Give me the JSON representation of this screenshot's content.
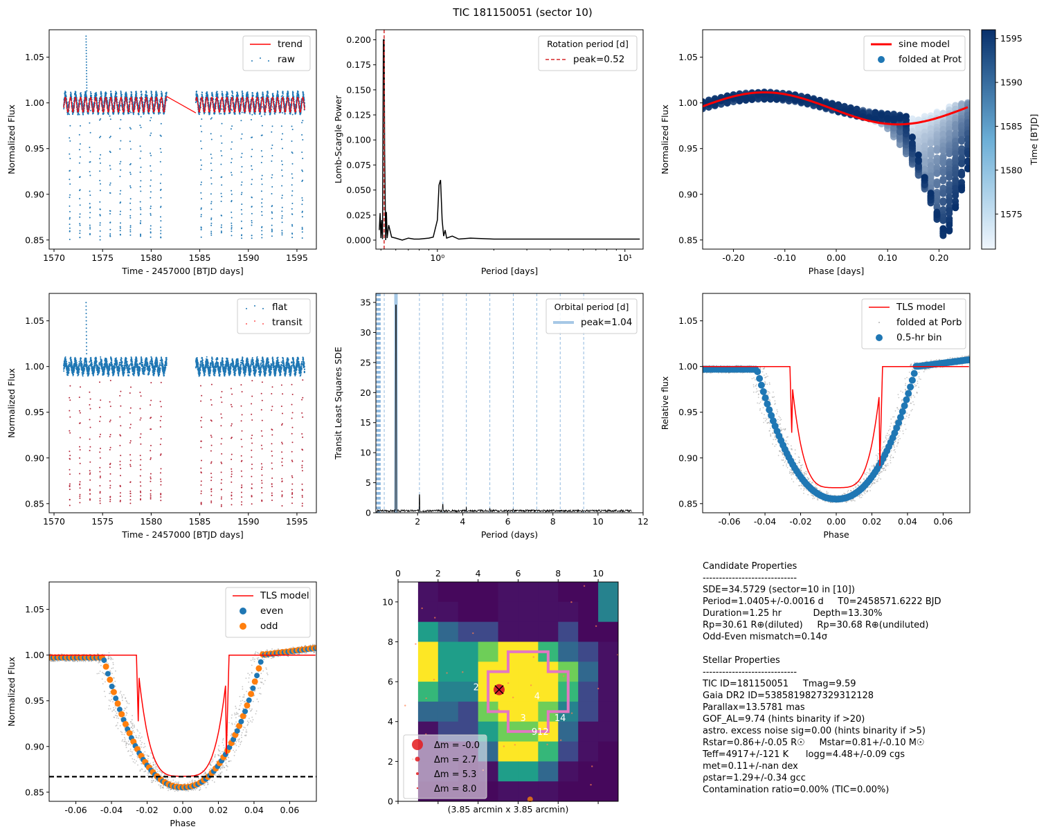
{
  "figure_title": "TIC 181150051 (sector 10)",
  "colors": {
    "blue": "#1f77b4",
    "red": "#ff0000",
    "orange": "#ff7f0e",
    "navy": "#08306b"
  },
  "chart_data": [
    {
      "id": "raw-lc",
      "type": "scatter",
      "xlabel": "Time - 2457000 [BTJD days]",
      "ylabel": "Normalized Flux",
      "xlim": [
        1569.5,
        1597
      ],
      "ylim": [
        0.84,
        1.08
      ],
      "xticks": [
        1570,
        1575,
        1580,
        1585,
        1590,
        1595
      ],
      "yticks": [
        0.85,
        0.9,
        0.95,
        1.0,
        1.05
      ],
      "legend": {
        "position": "top-right",
        "entries": [
          "trend",
          "raw"
        ]
      },
      "series": [
        {
          "name": "trend",
          "kind": "line",
          "segments": [
            [
              1571.0,
              1581.6
            ],
            [
              1584.6,
              1595.8
            ]
          ],
          "gap_line": [
            [
              1581.6,
              1.007
            ],
            [
              1584.6,
              0.989
            ]
          ]
        },
        {
          "name": "raw",
          "kind": "points",
          "segments": [
            [
              1571.0,
              1581.6
            ],
            [
              1584.6,
              1595.8
            ]
          ],
          "period": 1.0405,
          "t0": 1571.6222,
          "depth_min": 0.855,
          "baseline": 1.0,
          "flare": {
            "x": 1573.3,
            "y": 1.073
          }
        }
      ]
    },
    {
      "id": "lomb-scargle",
      "type": "line",
      "xlabel": "Period [days]",
      "ylabel": "Lomb-Scargle Power",
      "xscale": "log",
      "xlim": [
        0.47,
        12.5
      ],
      "ylim": [
        -0.009,
        0.21
      ],
      "xticks": [
        1,
        10
      ],
      "xticklabels": [
        "10⁰",
        "10¹"
      ],
      "yticks": [
        0.0,
        0.025,
        0.05,
        0.075,
        0.1,
        0.125,
        0.15,
        0.175,
        0.2
      ],
      "legend": {
        "position": "top-right",
        "title": "Rotation period [d]",
        "entries": [
          "peak=0.52"
        ]
      },
      "peak_period": 0.52,
      "points": [
        [
          0.49,
          0.01
        ],
        [
          0.495,
          0.027
        ],
        [
          0.5,
          0.002
        ],
        [
          0.505,
          0.02
        ],
        [
          0.51,
          0.001
        ],
        [
          0.515,
          0.2
        ],
        [
          0.52,
          0.2
        ],
        [
          0.523,
          0.09
        ],
        [
          0.53,
          0.0
        ],
        [
          0.535,
          0.028
        ],
        [
          0.54,
          0.002
        ],
        [
          0.55,
          0.015
        ],
        [
          0.57,
          0.003
        ],
        [
          0.6,
          0.002
        ],
        [
          0.65,
          0.0
        ],
        [
          0.7,
          0.002
        ],
        [
          0.75,
          0.001
        ],
        [
          0.8,
          0.001
        ],
        [
          0.9,
          0.002
        ],
        [
          0.95,
          0.003
        ],
        [
          1.0,
          0.02
        ],
        [
          1.02,
          0.055
        ],
        [
          1.04,
          0.06
        ],
        [
          1.06,
          0.02
        ],
        [
          1.08,
          0.004
        ],
        [
          1.1,
          0.01
        ],
        [
          1.12,
          0.002
        ],
        [
          1.2,
          0.004
        ],
        [
          1.3,
          0.001
        ],
        [
          1.5,
          0.002
        ],
        [
          2.0,
          0.001
        ],
        [
          3.0,
          0.001
        ],
        [
          5.0,
          0.001
        ],
        [
          8.0,
          0.001
        ],
        [
          12.0,
          0.001
        ]
      ]
    },
    {
      "id": "folded-prot",
      "type": "scatter",
      "xlabel": "Phase [days]",
      "ylabel": "Normalized Flux",
      "xlim": [
        -0.26,
        0.26
      ],
      "ylim": [
        0.84,
        1.08
      ],
      "xticks": [
        -0.2,
        -0.1,
        0.0,
        0.1,
        0.2
      ],
      "yticks": [
        0.85,
        0.9,
        0.95,
        1.0,
        1.05
      ],
      "legend": {
        "position": "top-right",
        "entries": [
          "sine model",
          "folded at Prot"
        ]
      },
      "sine_model": {
        "amplitude": 0.0175,
        "offset": 0.994,
        "peak_phase": -0.14,
        "period": 0.52
      },
      "colorbar": {
        "label": "Time [BTJD]",
        "range": [
          1571,
          1596
        ],
        "ticks": [
          1575,
          1580,
          1585,
          1590,
          1595
        ]
      }
    },
    {
      "id": "flat-lc",
      "type": "scatter",
      "xlabel": "Time - 2457000 [BTJD days]",
      "ylabel": "Normalized Flux",
      "xlim": [
        1569.5,
        1597
      ],
      "ylim": [
        0.84,
        1.08
      ],
      "xticks": [
        1570,
        1575,
        1580,
        1585,
        1590,
        1595
      ],
      "yticks": [
        0.85,
        0.9,
        0.95,
        1.0,
        1.05
      ],
      "legend": {
        "position": "top-right",
        "entries": [
          "flat",
          "transit"
        ]
      },
      "series": [
        {
          "name": "flat",
          "segments": [
            [
              1571.0,
              1581.6
            ],
            [
              1584.6,
              1595.8
            ]
          ],
          "baseline": 1.0
        },
        {
          "name": "transit",
          "period": 1.0405,
          "t0": 1571.6222,
          "depth_min": 0.852
        }
      ]
    },
    {
      "id": "tls-periodogram",
      "type": "line",
      "xlabel": "Period (days)",
      "ylabel": "Transit Least Squares SDE",
      "xlim": [
        0.15,
        12
      ],
      "ylim": [
        0,
        36.5
      ],
      "xticks": [
        2,
        4,
        6,
        8,
        10,
        12
      ],
      "yticks": [
        0,
        5,
        10,
        15,
        20,
        25,
        30,
        35
      ],
      "legend": {
        "position": "top-right",
        "title": "Orbital period [d]",
        "entries": [
          "peak=1.04"
        ]
      },
      "peak_period": 1.0405,
      "peak_sde": 34.57,
      "harmonics": [
        2.081,
        3.1215,
        4.162,
        5.2025,
        6.243,
        7.2835,
        8.324,
        9.3645,
        0.52,
        0.347,
        0.26,
        0.208,
        0.173
      ],
      "secondary_peaks": [
        [
          2.08,
          3.0
        ],
        [
          3.12,
          1.4
        ],
        [
          4.16,
          1.0
        ],
        [
          5.2,
          0.7
        ],
        [
          6.24,
          0.6
        ],
        [
          7.28,
          0.5
        ],
        [
          8.32,
          0.4
        ],
        [
          9.36,
          0.3
        ],
        [
          10.4,
          0.3
        ]
      ]
    },
    {
      "id": "tls-fold",
      "type": "scatter",
      "xlabel": "Phase",
      "ylabel": "Relative flux",
      "xlim": [
        -0.075,
        0.075
      ],
      "ylim": [
        0.84,
        1.08
      ],
      "xticks": [
        -0.06,
        -0.04,
        -0.02,
        0.0,
        0.02,
        0.04,
        0.06
      ],
      "yticks": [
        0.85,
        0.9,
        0.95,
        1.0,
        1.05
      ],
      "legend": {
        "position": "top-right",
        "entries": [
          "TLS model",
          "folded at Porb",
          "0.5-hr bin"
        ]
      },
      "model": {
        "t_half": 0.026,
        "depth": 0.8675
      }
    },
    {
      "id": "odd-even",
      "type": "scatter",
      "xlabel": "Phase",
      "ylabel": "Normalized Flux",
      "xlim": [
        -0.075,
        0.075
      ],
      "ylim": [
        0.84,
        1.08
      ],
      "xticks": [
        -0.06,
        -0.04,
        -0.02,
        0.0,
        0.02,
        0.04,
        0.06
      ],
      "yticks": [
        0.85,
        0.9,
        0.95,
        1.0,
        1.05
      ],
      "legend": {
        "position": "top-right",
        "entries": [
          "TLS model",
          "even",
          "odd"
        ]
      },
      "depth_line": 0.867
    },
    {
      "id": "tpf-image",
      "type": "heatmap",
      "xlabel": "(3.85 arcmin x 3.85 arcmin)",
      "xlim": [
        0,
        11
      ],
      "ylim": [
        0,
        11
      ],
      "xticks": [
        0,
        2,
        4,
        6,
        8,
        10
      ],
      "yticks": [
        0,
        2,
        4,
        6,
        8,
        10
      ],
      "grid": [
        [
          2,
          1,
          1,
          1,
          2,
          2,
          2,
          1,
          1,
          5
        ],
        [
          2,
          2,
          1,
          1,
          2,
          2,
          2,
          2,
          1,
          5
        ],
        [
          6,
          4,
          3,
          3,
          2,
          2,
          2,
          3,
          1,
          1
        ],
        [
          9,
          6,
          6,
          8,
          9,
          9,
          7,
          4,
          3,
          2
        ],
        [
          9,
          6,
          6,
          9,
          9,
          9,
          9,
          8,
          4,
          2
        ],
        [
          7,
          5,
          5,
          9,
          9,
          9,
          9,
          7,
          3,
          2
        ],
        [
          4,
          4,
          3,
          8,
          9,
          9,
          8,
          5,
          3,
          2
        ],
        [
          2,
          3,
          3,
          6,
          8,
          8,
          9,
          4,
          2,
          2
        ],
        [
          2,
          2,
          2,
          4,
          9,
          9,
          7,
          3,
          2,
          1
        ],
        [
          2,
          2,
          1,
          2,
          6,
          6,
          4,
          2,
          1,
          1
        ],
        [
          1,
          1,
          1,
          1,
          2,
          2,
          2,
          1,
          1,
          1
        ]
      ],
      "star_labels": [
        {
          "text": "2",
          "x": 3.9,
          "y": 5.75
        },
        {
          "text": "4",
          "x": 6.95,
          "y": 5.3
        },
        {
          "text": "3",
          "x": 6.25,
          "y": 4.2
        },
        {
          "text": "14",
          "x": 8.1,
          "y": 4.2
        },
        {
          "text": "912",
          "x": 7.1,
          "y": 3.5
        }
      ],
      "legend": {
        "position": "bottom-left",
        "entries": [
          "Δm = -0.0",
          "Δm = 2.7",
          "Δm = 5.3",
          "Δm = 8.0"
        ]
      }
    }
  ],
  "candidate_properties": [
    "Candidate Properties",
    "-----------------------------",
    "SDE=34.5729 (sector=10 in [10])",
    "Period=1.0405+/-0.0016 d     T0=2458571.6222 BJD",
    "Duration=1.25 hr           Depth=13.30%",
    "Rp=30.61 R⊕(diluted)     Rp=30.68 R⊕(undiluted)",
    "Odd-Even mismatch=0.14σ",
    ""
  ],
  "stellar_properties": [
    "Stellar Properties",
    "-----------------------------",
    "TIC ID=181150051     Tmag=9.59",
    "Gaia DR2 ID=5385819827329312128",
    "Parallax=13.5781 mas",
    "GOF_AL=9.74 (hints binarity if >20)",
    "astro. excess noise sig=0.00 (hints binarity if >5)",
    "Rstar=0.86+/-0.05 R☉     Mstar=0.81+/-0.10 M☉",
    "Teff=4917+/-121 K      logg=4.48+/-0.09 cgs",
    "met=0.11+/-nan dex",
    "ρstar=1.29+/-0.34 gcc",
    "Contamination ratio=0.00% (TIC=0.00%)"
  ]
}
